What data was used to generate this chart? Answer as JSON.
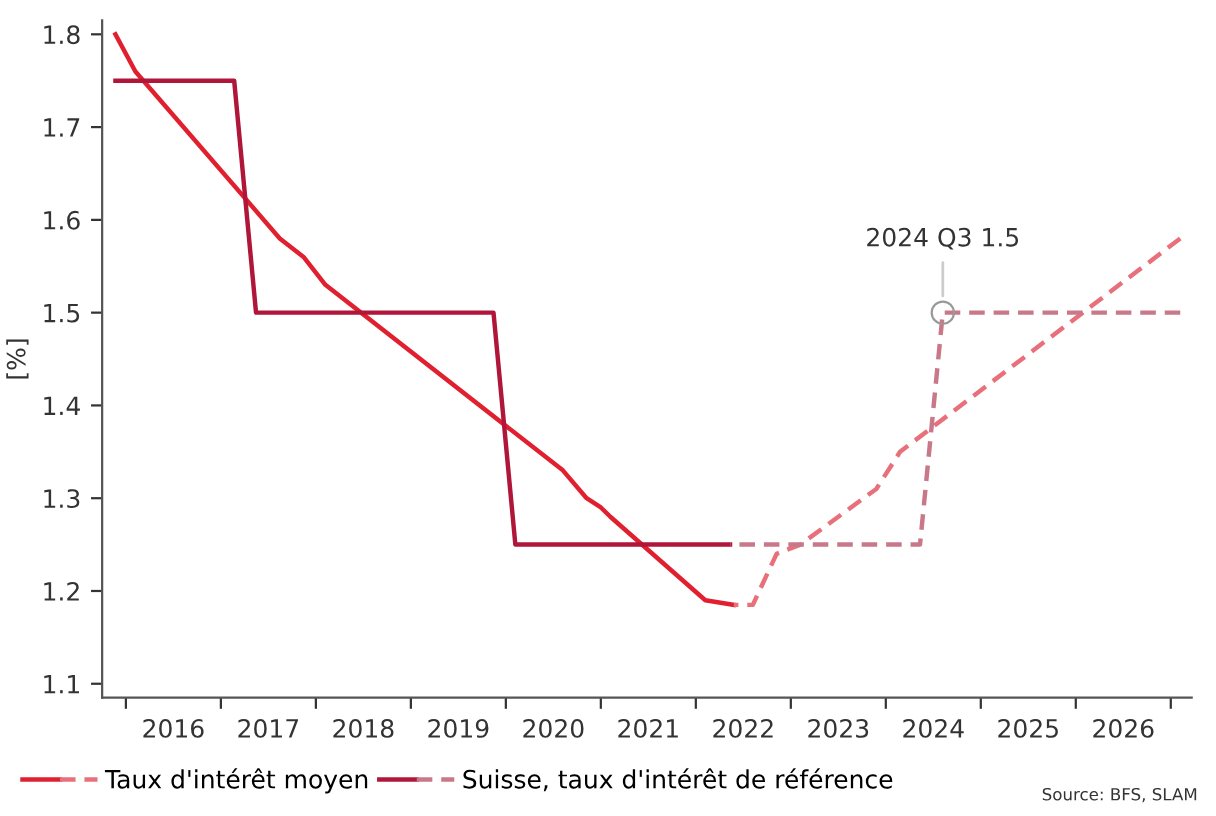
{
  "chart_data": {
    "type": "line",
    "ylabel": "[%]",
    "xlim": [
      2015.75,
      2027.22
    ],
    "ylim": [
      1.085,
      1.815
    ],
    "xticks": [
      {
        "value": 2016,
        "label": null
      },
      {
        "value": 2016.5,
        "label": "2016"
      },
      {
        "value": 2017,
        "label": null
      },
      {
        "value": 2017.5,
        "label": "2017"
      },
      {
        "value": 2018,
        "label": null
      },
      {
        "value": 2018.5,
        "label": "2018"
      },
      {
        "value": 2019,
        "label": null
      },
      {
        "value": 2019.5,
        "label": "2019"
      },
      {
        "value": 2020,
        "label": null
      },
      {
        "value": 2020.5,
        "label": "2020"
      },
      {
        "value": 2021,
        "label": null
      },
      {
        "value": 2021.5,
        "label": "2021"
      },
      {
        "value": 2022,
        "label": null
      },
      {
        "value": 2022.5,
        "label": "2022"
      },
      {
        "value": 2023,
        "label": null
      },
      {
        "value": 2023.5,
        "label": "2023"
      },
      {
        "value": 2024,
        "label": null
      },
      {
        "value": 2024.5,
        "label": "2024"
      },
      {
        "value": 2025,
        "label": null
      },
      {
        "value": 2025.5,
        "label": "2025"
      },
      {
        "value": 2026,
        "label": null
      },
      {
        "value": 2026.5,
        "label": "2026"
      },
      {
        "value": 2027,
        "label": null
      }
    ],
    "yticks": [
      1.1,
      1.2,
      1.3,
      1.4,
      1.5,
      1.6,
      1.7,
      1.8
    ],
    "grid": false,
    "legend": "bottom left",
    "marker": "none",
    "series": [
      {
        "name": "Taux d'intérêt moyen",
        "color": "#e0202f",
        "line_style": "solid",
        "x": [
          2015.89,
          2016.1,
          2017.62,
          2017.87,
          2018.1,
          2020.6,
          2020.85,
          2021.0,
          2021.1,
          2022.1,
          2022.4
        ],
        "values": [
          1.8,
          1.76,
          1.58,
          1.56,
          1.53,
          1.33,
          1.3,
          1.29,
          1.28,
          1.19,
          1.185
        ]
      },
      {
        "color": "#e8707a",
        "line_style": "dashed",
        "x": [
          2022.4,
          2022.6,
          2022.85,
          2023.1,
          2023.9,
          2024.15,
          2027.1
        ],
        "values": [
          1.185,
          1.185,
          1.24,
          1.25,
          1.31,
          1.35,
          1.58
        ]
      },
      {
        "name": "Suisse, taux d'intérêt de référence",
        "color": "#b0163a",
        "line_style": "solid",
        "x": [
          2015.89,
          2017.14,
          2017.37,
          2019.87,
          2020.1,
          2022.36
        ],
        "values": [
          1.75,
          1.75,
          1.5,
          1.5,
          1.25,
          1.25
        ]
      },
      {
        "color": "#c9788a",
        "line_style": "dashed",
        "x": [
          2022.36,
          2024.36,
          2024.6,
          2027.1
        ],
        "values": [
          1.25,
          1.25,
          1.5,
          1.5
        ]
      }
    ],
    "annotations": [
      {
        "text": "2024 Q3 1.5",
        "x": 2024.6,
        "y": 1.5
      },
      "Source: BFS, SLAM"
    ]
  }
}
